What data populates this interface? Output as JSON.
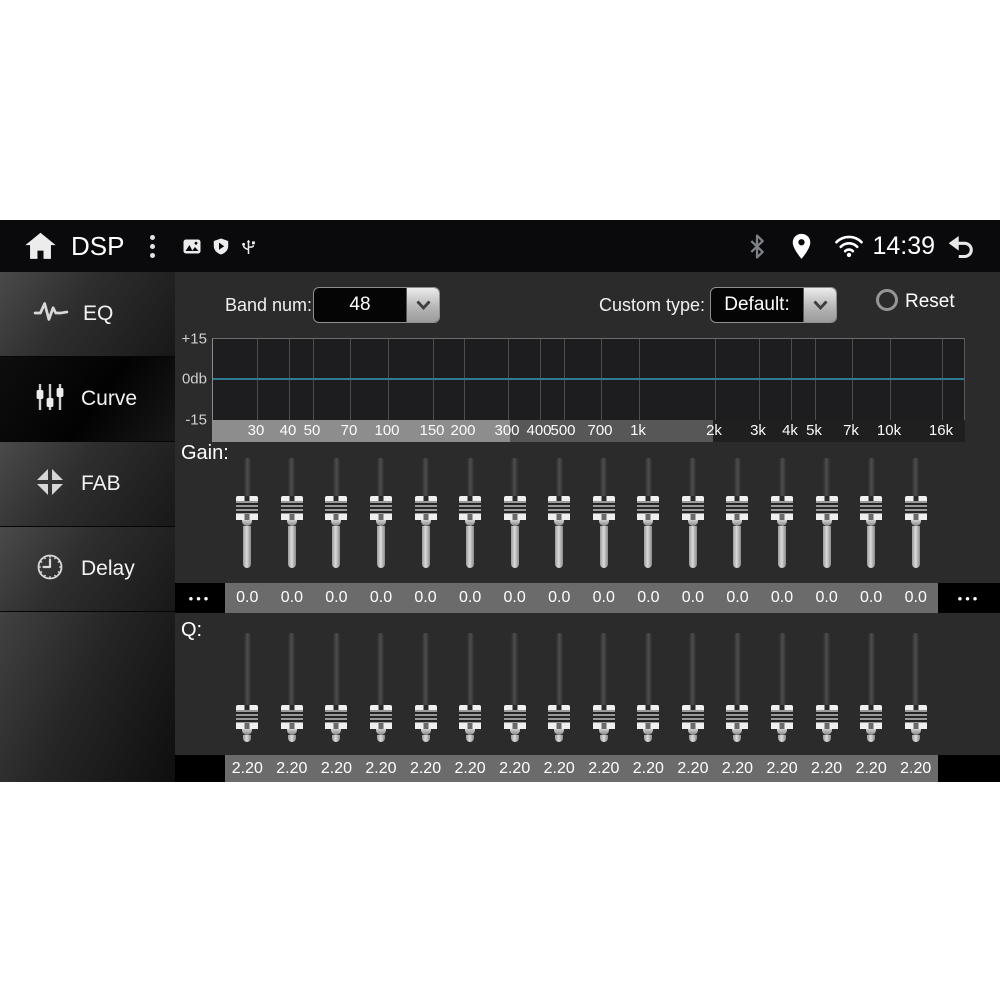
{
  "status_bar": {
    "title": "DSP",
    "time": "14:39",
    "icons": {
      "left": [
        "home-icon",
        "overflow-menu-icon",
        "gallery-icon",
        "shield-play-icon",
        "usb-icon"
      ],
      "right": [
        "bluetooth-icon",
        "location-icon",
        "wifi-icon",
        "back-icon"
      ]
    }
  },
  "sidebar": {
    "items": [
      {
        "label": "EQ",
        "icon": "waveform-icon",
        "selected": false
      },
      {
        "label": "Curve",
        "icon": "faders-icon",
        "selected": true
      },
      {
        "label": "FAB",
        "icon": "fab-arrows-icon",
        "selected": false
      },
      {
        "label": "Delay",
        "icon": "clock-icon",
        "selected": false
      }
    ]
  },
  "controls": {
    "band_num_label": "Band num:",
    "band_num_value": "48",
    "custom_type_label": "Custom type:",
    "custom_type_value": "Default:",
    "reset_label": "Reset"
  },
  "graph": {
    "y_axis_labels": [
      "+15",
      "0db",
      "-15"
    ],
    "freq_labels": [
      "30",
      "40",
      "50",
      "70",
      "100",
      "150",
      "200",
      "300",
      "400",
      "500",
      "700",
      "1k",
      "2k",
      "3k",
      "4k",
      "5k",
      "7k",
      "10k",
      "16k"
    ],
    "freq_values": [
      30,
      40,
      50,
      70,
      100,
      150,
      200,
      300,
      400,
      500,
      700,
      1000,
      2000,
      3000,
      4000,
      5000,
      7000,
      10000,
      16000
    ],
    "curve_color": "#2d7b90"
  },
  "chart_data": {
    "type": "line",
    "title": "",
    "x_labels": [
      "30",
      "40",
      "50",
      "70",
      "100",
      "150",
      "200",
      "300",
      "400",
      "500",
      "700",
      "1k",
      "2k",
      "3k",
      "4k",
      "5k",
      "7k",
      "10k",
      "16k"
    ],
    "series": [
      {
        "name": "eq-response",
        "values": [
          0,
          0,
          0,
          0,
          0,
          0,
          0,
          0,
          0,
          0,
          0,
          0,
          0,
          0,
          0,
          0,
          0,
          0,
          0
        ]
      }
    ],
    "ylabel": "db",
    "ylim": [
      -15,
      15
    ],
    "x_scale": "log",
    "grid": true,
    "legend_position": "none"
  },
  "gain": {
    "label": "Gain:",
    "more_left": "•••",
    "more_right": "•••",
    "values": [
      "0.0",
      "0.0",
      "0.0",
      "0.0",
      "0.0",
      "0.0",
      "0.0",
      "0.0",
      "0.0",
      "0.0",
      "0.0",
      "0.0",
      "0.0",
      "0.0",
      "0.0",
      "0.0"
    ]
  },
  "q": {
    "label": "Q:",
    "values": [
      "2.20",
      "2.20",
      "2.20",
      "2.20",
      "2.20",
      "2.20",
      "2.20",
      "2.20",
      "2.20",
      "2.20",
      "2.20",
      "2.20",
      "2.20",
      "2.20",
      "2.20",
      "2.20"
    ]
  }
}
